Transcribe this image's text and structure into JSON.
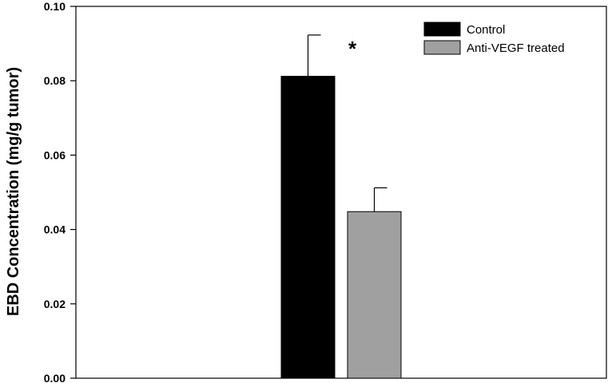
{
  "chart_data": {
    "type": "bar",
    "title": "",
    "xlabel": "",
    "ylabel": "EBD Concentration (mg/g tumor)",
    "ylim": [
      0,
      0.1
    ],
    "yticks": [
      "0.00",
      "0.02",
      "0.04",
      "0.06",
      "0.08",
      "0.10"
    ],
    "grid": false,
    "legend_position": "top-right",
    "series": [
      {
        "name": "Control",
        "values": [
          0.0812
        ],
        "error": [
          0.0111
        ],
        "color": "#000000"
      },
      {
        "name": "Anti-VEGF treated",
        "values": [
          0.0448
        ],
        "error": [
          0.0064
        ],
        "color": "#a0a0a0"
      }
    ],
    "annotations": [
      {
        "text": "*"
      }
    ]
  }
}
